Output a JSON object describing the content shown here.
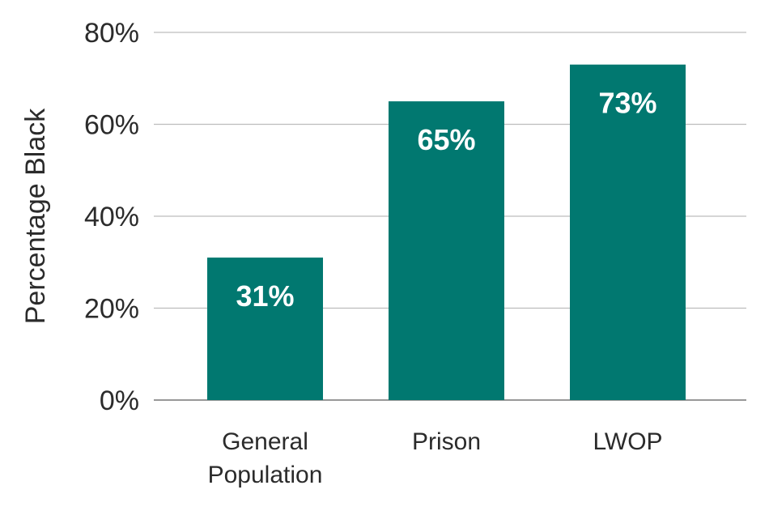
{
  "chart_data": {
    "type": "bar",
    "title": "",
    "xlabel": "",
    "ylabel": "Percentage Black",
    "categories": [
      [
        "General",
        "Population"
      ],
      [
        "Prison"
      ],
      [
        "LWOP"
      ]
    ],
    "values": [
      31,
      65,
      73
    ],
    "data_labels": [
      "31%",
      "65%",
      "73%"
    ],
    "ylim": [
      0,
      80
    ],
    "yticks": [
      0,
      20,
      40,
      60,
      80
    ],
    "ytick_labels": [
      "0%",
      "20%",
      "40%",
      "60%",
      "80%"
    ],
    "grid": true,
    "colors": {
      "bar": "#017870",
      "grid": "#bdbdbd",
      "baseline": "#777777",
      "text": "#2b2b2b",
      "label": "#ffffff"
    }
  }
}
